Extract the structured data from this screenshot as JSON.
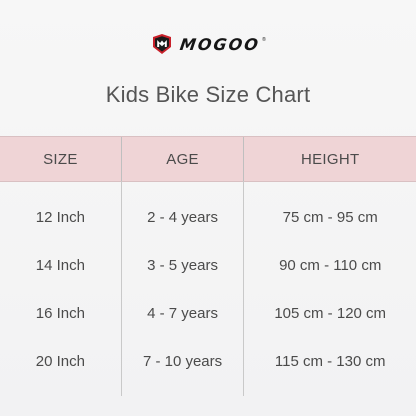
{
  "brand": {
    "name": "MOGOO",
    "reg_mark": "®",
    "accent_color": "#c8202a"
  },
  "title": "Kids Bike Size Chart",
  "table": {
    "header_color": "#efd4d6",
    "headers": [
      "SIZE",
      "AGE",
      "HEIGHT"
    ],
    "rows": [
      [
        "12 Inch",
        "2 - 4 years",
        "75 cm - 95 cm"
      ],
      [
        "14 Inch",
        "3 - 5 years",
        "90 cm - 110 cm"
      ],
      [
        "16 Inch",
        "4 - 7 years",
        "105 cm - 120 cm"
      ],
      [
        "20 Inch",
        "7 - 10 years",
        "115 cm - 130 cm"
      ]
    ]
  }
}
